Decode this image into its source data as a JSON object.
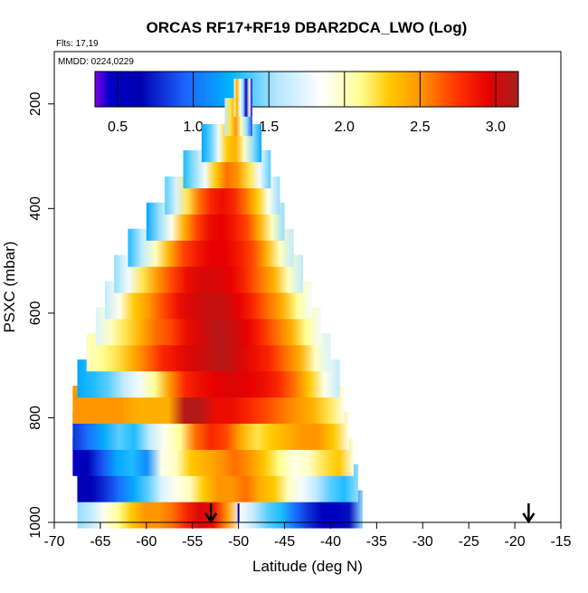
{
  "chart_data": {
    "type": "heatmap",
    "title": "ORCAS RF17+RF19 DBAR2DCA_LWO (Log)",
    "annotations": {
      "flights": "Flts: 17,19",
      "dates": "MMDD: 0224,0229"
    },
    "xlabel": "Latitude (deg N)",
    "ylabel": "PSXC (mbar)",
    "xlim": [
      -70,
      -15
    ],
    "ylim": [
      1000,
      100
    ],
    "xticks": [
      -70,
      -65,
      -60,
      -55,
      -50,
      -45,
      -40,
      -35,
      -30,
      -25,
      -20,
      -15
    ],
    "xtick_labels": [
      "-70",
      "-65",
      "-60",
      "-55",
      "-50",
      "-45",
      "-40",
      "-35",
      "-30",
      "-25",
      "-20",
      "-15"
    ],
    "yticks": [
      200,
      400,
      600,
      800,
      1000
    ],
    "ytick_labels": [
      "200",
      "400",
      "600",
      "800",
      "1000"
    ],
    "colorbar": {
      "range": [
        0.35,
        3.15
      ],
      "ticks": [
        0.5,
        1.0,
        1.5,
        2.0,
        2.5,
        3.0
      ],
      "tick_labels": [
        "0.5",
        "1.0",
        "1.5",
        "2.0",
        "2.5",
        "3.0"
      ],
      "stops": [
        [
          0.35,
          "#7b00e8"
        ],
        [
          0.45,
          "#0000c8"
        ],
        [
          0.65,
          "#0000b0"
        ],
        [
          0.95,
          "#1e64ff"
        ],
        [
          1.25,
          "#00b4ff"
        ],
        [
          1.55,
          "#b4e6ff"
        ],
        [
          1.85,
          "#ffffff"
        ],
        [
          2.1,
          "#ffff96"
        ],
        [
          2.3,
          "#ffc800"
        ],
        [
          2.5,
          "#ff9600"
        ],
        [
          2.75,
          "#ff3200"
        ],
        [
          2.95,
          "#e60000"
        ],
        [
          3.15,
          "#a52020"
        ]
      ]
    },
    "arrows": [
      {
        "latitude": -53,
        "color": "#000000"
      },
      {
        "latitude": -18.5,
        "color": "#000000"
      }
    ],
    "marker": {
      "latitude": -50,
      "color": "#0000aa"
    },
    "layers": [
      {
        "p": 975,
        "lo": -67.5,
        "hi": -36.5,
        "v": [
          1.5,
          1.6,
          1.9,
          2.1,
          2.3,
          2.5,
          2.5,
          2.6,
          2.8,
          3.0,
          2.9,
          2.5,
          1.8,
          1.6,
          1.4,
          1.3,
          1.0,
          0.8,
          0.5,
          0.5,
          0.7,
          1.5
        ]
      },
      {
        "p": 925,
        "lo": -67.5,
        "hi": -37,
        "v": [
          0.6,
          0.6,
          0.8,
          1.0,
          1.2,
          1.4,
          1.7,
          1.9,
          2.0,
          2.3,
          2.5,
          2.5,
          2.6,
          2.4,
          2.3,
          2.0,
          1.8,
          1.6,
          1.4,
          1.3,
          1.5
        ]
      },
      {
        "p": 875,
        "lo": -68,
        "hi": -37.5,
        "v": [
          0.5,
          0.6,
          0.9,
          1.2,
          1.3,
          1.1,
          1.9,
          2.0,
          2.3,
          2.4,
          2.5,
          2.6,
          2.5,
          2.3,
          2.1,
          1.9,
          2.0,
          2.2,
          2.3,
          1.9
        ]
      },
      {
        "p": 825,
        "lo": -68,
        "hi": -38,
        "v": [
          0.8,
          1.0,
          1.2,
          1.4,
          1.3,
          1.6,
          1.9,
          2.1,
          2.6,
          2.8,
          2.7,
          2.4,
          2.2,
          2.3,
          2.4,
          2.5,
          2.5,
          2.3,
          1.9
        ]
      },
      {
        "p": 775,
        "lo": -68,
        "hi": -38.5,
        "v": [
          2.5,
          2.5,
          2.5,
          2.5,
          2.4,
          2.4,
          2.4,
          3.1,
          3.1,
          2.9,
          2.9,
          2.8,
          2.7,
          2.6,
          2.5,
          2.4,
          2.2,
          1.9
        ]
      },
      {
        "p": 725,
        "lo": -67.5,
        "hi": -39,
        "v": [
          1.2,
          1.3,
          1.4,
          1.6,
          1.8,
          2.1,
          2.5,
          2.8,
          2.9,
          2.95,
          3.0,
          2.95,
          2.9,
          2.8,
          2.6,
          2.3,
          1.9,
          1.6
        ]
      },
      {
        "p": 675,
        "lo": -66.5,
        "hi": -40,
        "v": [
          2.0,
          2.1,
          2.2,
          2.4,
          2.6,
          2.8,
          2.9,
          3.0,
          3.05,
          3.1,
          3.0,
          2.9,
          2.8,
          2.6,
          2.4,
          2.0,
          1.7
        ]
      },
      {
        "p": 625,
        "lo": -65.5,
        "hi": -41,
        "v": [
          1.7,
          2.0,
          2.2,
          2.4,
          2.6,
          2.7,
          2.9,
          3.0,
          3.1,
          3.05,
          2.95,
          2.8,
          2.6,
          2.4,
          2.1,
          1.8
        ]
      },
      {
        "p": 575,
        "lo": -64.5,
        "hi": -42,
        "v": [
          1.6,
          1.9,
          2.3,
          2.5,
          2.7,
          2.9,
          3.0,
          3.05,
          3.05,
          2.95,
          2.8,
          2.6,
          2.4,
          2.1,
          1.8
        ]
      },
      {
        "p": 525,
        "lo": -63.5,
        "hi": -43,
        "v": [
          1.5,
          1.8,
          2.2,
          2.5,
          2.7,
          2.9,
          3.0,
          3.0,
          2.95,
          2.8,
          2.6,
          2.4,
          2.0,
          1.6
        ]
      },
      {
        "p": 475,
        "lo": -62,
        "hi": -44,
        "v": [
          1.3,
          1.6,
          2.0,
          2.4,
          2.7,
          2.85,
          2.95,
          2.95,
          2.85,
          2.7,
          2.4,
          2.0,
          1.6
        ]
      },
      {
        "p": 425,
        "lo": -60,
        "hi": -45,
        "v": [
          1.2,
          1.5,
          1.9,
          2.4,
          2.7,
          2.9,
          2.95,
          2.85,
          2.7,
          2.4,
          2.0,
          1.5
        ]
      },
      {
        "p": 375,
        "lo": -58,
        "hi": -45.5,
        "v": [
          1.4,
          1.7,
          2.2,
          2.6,
          2.8,
          2.9,
          2.8,
          2.6,
          2.3,
          1.9,
          1.5
        ]
      },
      {
        "p": 325,
        "lo": -56,
        "hi": -46.5,
        "v": [
          1.3,
          1.5,
          1.8,
          2.3,
          2.6,
          2.5,
          2.2,
          1.8,
          1.4
        ]
      },
      {
        "p": 275,
        "lo": -54,
        "hi": -47.5,
        "v": [
          1.2,
          1.4,
          1.8,
          2.3,
          2.4,
          2.0,
          1.5,
          1.2
        ]
      },
      {
        "p": 225,
        "lo": -51.5,
        "hi": -48.5,
        "v": [
          1.6,
          2.2,
          2.5,
          2.0,
          1.5,
          0.9
        ]
      },
      {
        "p": 188,
        "lo": -50.5,
        "hi": -48.5,
        "v": [
          2.0,
          2.4,
          1.8,
          1.5,
          0.6,
          1.9,
          0.5
        ]
      }
    ]
  }
}
